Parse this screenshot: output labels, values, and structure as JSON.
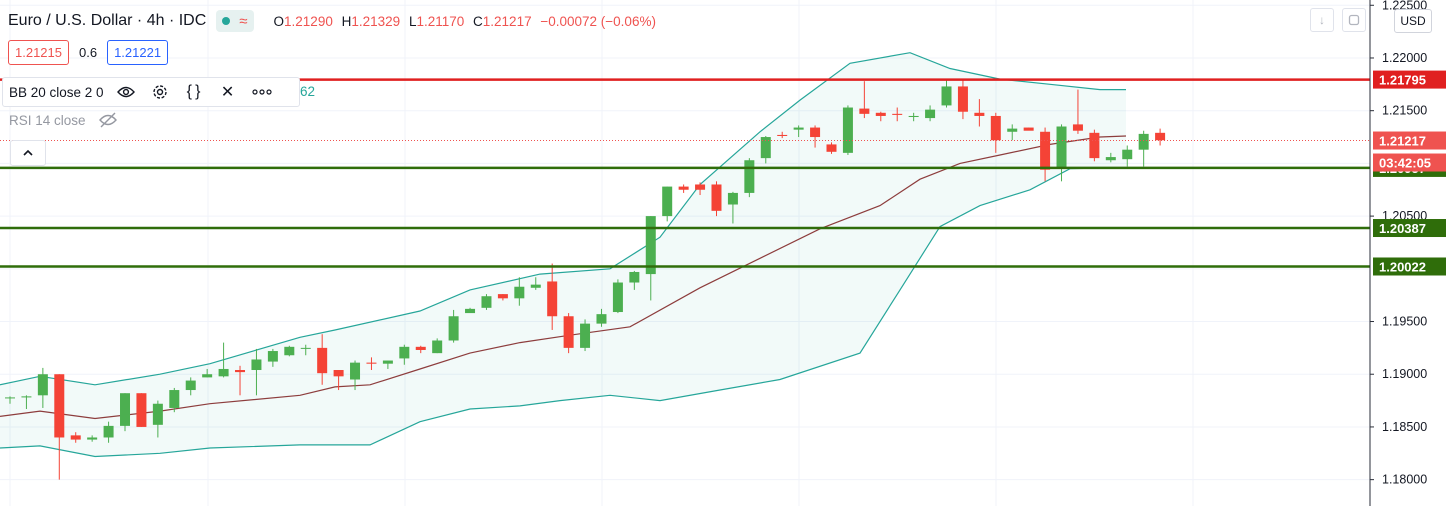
{
  "legend": {
    "symbol": "Euro / U.S. Dollar · 4h · IDC",
    "ohlc": [
      {
        "label": "O",
        "value": "1.21290"
      },
      {
        "label": "H",
        "value": "1.21329"
      },
      {
        "label": "L",
        "value": "1.21170"
      },
      {
        "label": "C",
        "value": "1.21217"
      }
    ],
    "change": "−0.00072 (−0.06%)",
    "bid": "1.21215",
    "spread": "0.6",
    "ask": "1.21221",
    "bb_label": "BB 20 close 2 0",
    "bb_value_tail": "62",
    "rsi_label": "RSI 14 close",
    "currency": "USD"
  },
  "icons": {
    "status": "market-open-dot",
    "wave": "approx-wave-icon",
    "bb_tools": [
      "eye-icon",
      "gear-icon",
      "braces-icon",
      "close-icon",
      "more-icon"
    ],
    "rsi": "eye-hidden-icon",
    "collapse": "chevron-up-icon",
    "top_right": [
      "arrow-down-icon",
      "restore-icon"
    ]
  },
  "chart_data": {
    "type": "candlestick",
    "y_ticks": [
      "1.22500",
      "1.22000",
      "1.21500",
      "1.20500",
      "1.19500",
      "1.19000",
      "1.18500",
      "1.18000"
    ],
    "ylim": [
      1.1775,
      1.2255
    ],
    "colors": {
      "up": "#4caf50",
      "down": "#f44336",
      "band": "#26a69a",
      "basis": "#8d3d3d"
    },
    "candles": [
      [
        1.1878,
        1.1879,
        1.1872,
        1.1878
      ],
      [
        1.1878,
        1.188,
        1.1867,
        1.1879
      ],
      [
        1.188,
        1.1906,
        1.1868,
        1.19
      ],
      [
        1.19,
        1.19,
        1.18,
        1.184
      ],
      [
        1.1842,
        1.1845,
        1.1835,
        1.1838
      ],
      [
        1.1838,
        1.1842,
        1.1836,
        1.184
      ],
      [
        1.184,
        1.1855,
        1.1835,
        1.1851
      ],
      [
        1.1851,
        1.1882,
        1.1846,
        1.1882
      ],
      [
        1.1882,
        1.1882,
        1.185,
        1.185
      ],
      [
        1.1852,
        1.1875,
        1.184,
        1.1872
      ],
      [
        1.1868,
        1.1887,
        1.1864,
        1.1885
      ],
      [
        1.1885,
        1.1897,
        1.188,
        1.1894
      ],
      [
        1.1897,
        1.1905,
        1.1897,
        1.19
      ],
      [
        1.1898,
        1.193,
        1.1897,
        1.1905
      ],
      [
        1.1904,
        1.1908,
        1.188,
        1.1902
      ],
      [
        1.1904,
        1.1924,
        1.188,
        1.1914
      ],
      [
        1.1912,
        1.1924,
        1.1907,
        1.1922
      ],
      [
        1.1918,
        1.1927,
        1.1917,
        1.1926
      ],
      [
        1.1925,
        1.1928,
        1.1918,
        1.1925
      ],
      [
        1.1925,
        1.1938,
        1.189,
        1.1901
      ],
      [
        1.1904,
        1.1904,
        1.1885,
        1.1898
      ],
      [
        1.1895,
        1.1913,
        1.1885,
        1.1911
      ],
      [
        1.1911,
        1.1916,
        1.1904,
        1.191
      ],
      [
        1.191,
        1.1913,
        1.1905,
        1.1913
      ],
      [
        1.1915,
        1.1928,
        1.1909,
        1.1926
      ],
      [
        1.1926,
        1.1927,
        1.192,
        1.1923
      ],
      [
        1.192,
        1.1934,
        1.192,
        1.1932
      ],
      [
        1.1932,
        1.1961,
        1.193,
        1.1955
      ],
      [
        1.1958,
        1.1963,
        1.196,
        1.1962
      ],
      [
        1.1963,
        1.1976,
        1.1961,
        1.1974
      ],
      [
        1.1976,
        1.1976,
        1.197,
        1.1972
      ],
      [
        1.1972,
        1.1992,
        1.1965,
        1.1983
      ],
      [
        1.1982,
        1.1992,
        1.198,
        1.1985
      ],
      [
        1.1988,
        1.2005,
        1.1942,
        1.1955
      ],
      [
        1.1955,
        1.1958,
        1.192,
        1.1925
      ],
      [
        1.1925,
        1.1952,
        1.1922,
        1.1948
      ],
      [
        1.1948,
        1.1962,
        1.1945,
        1.1957
      ],
      [
        1.1959,
        1.199,
        1.1958,
        1.1987
      ],
      [
        1.1987,
        1.1998,
        1.198,
        1.1997
      ],
      [
        1.1995,
        1.205,
        1.197,
        1.205
      ],
      [
        1.205,
        1.2078,
        1.2045,
        1.2078
      ],
      [
        1.2078,
        1.208,
        1.2072,
        1.2075
      ],
      [
        1.208,
        1.2082,
        1.207,
        1.2075
      ],
      [
        1.208,
        1.2083,
        1.205,
        1.2055
      ],
      [
        1.2061,
        1.2073,
        1.2043,
        1.2072
      ],
      [
        1.2072,
        1.2105,
        1.2068,
        1.2103
      ],
      [
        1.2105,
        1.2126,
        1.21,
        1.2125
      ],
      [
        1.2127,
        1.213,
        1.2124,
        1.2126
      ],
      [
        1.2132,
        1.2136,
        1.2125,
        1.2134
      ],
      [
        1.2134,
        1.2136,
        1.2115,
        1.2125
      ],
      [
        1.2118,
        1.212,
        1.2109,
        1.2111
      ],
      [
        1.211,
        1.2155,
        1.2108,
        1.2153
      ],
      [
        1.2152,
        1.2178,
        1.2143,
        1.2147
      ],
      [
        1.2148,
        1.2149,
        1.214,
        1.2145
      ],
      [
        1.2147,
        1.2153,
        1.214,
        1.2146
      ],
      [
        1.2144,
        1.2148,
        1.214,
        1.2145
      ],
      [
        1.2143,
        1.2155,
        1.214,
        1.2151
      ],
      [
        1.2155,
        1.218,
        1.2153,
        1.2173
      ],
      [
        1.2173,
        1.218,
        1.2142,
        1.2149
      ],
      [
        1.2148,
        1.2161,
        1.2135,
        1.2145
      ],
      [
        1.2145,
        1.2148,
        1.211,
        1.2122
      ],
      [
        1.213,
        1.2137,
        1.2122,
        1.2133
      ],
      [
        1.2134,
        1.2134,
        1.2132,
        1.2131
      ],
      [
        1.213,
        1.2134,
        1.2083,
        1.2094
      ],
      [
        1.2096,
        1.2137,
        1.2083,
        1.2135
      ],
      [
        1.2137,
        1.217,
        1.2128,
        1.2131
      ],
      [
        1.2129,
        1.2132,
        1.2102,
        1.2105
      ],
      [
        1.2103,
        1.211,
        1.2101,
        1.2106
      ],
      [
        1.2104,
        1.2117,
        1.2097,
        1.2113
      ],
      [
        1.2113,
        1.2131,
        1.2097,
        1.2128
      ],
      [
        1.2129,
        1.2133,
        1.2117,
        1.2122
      ]
    ],
    "basis": [
      [
        0,
        1.186
      ],
      [
        40,
        1.1865
      ],
      [
        95,
        1.1858
      ],
      [
        160,
        1.1865
      ],
      [
        210,
        1.1872
      ],
      [
        300,
        1.188
      ],
      [
        335,
        1.1888
      ],
      [
        370,
        1.189
      ],
      [
        420,
        1.1905
      ],
      [
        470,
        1.192
      ],
      [
        520,
        1.193
      ],
      [
        570,
        1.1937
      ],
      [
        630,
        1.1945
      ],
      [
        700,
        1.1982
      ],
      [
        760,
        1.201
      ],
      [
        820,
        1.2038
      ],
      [
        880,
        1.206
      ],
      [
        920,
        1.2085
      ],
      [
        960,
        1.21
      ],
      [
        1000,
        1.2108
      ],
      [
        1050,
        1.2118
      ],
      [
        1100,
        1.2125
      ],
      [
        1126,
        1.2126
      ]
    ],
    "upper_band": [
      [
        0,
        1.189
      ],
      [
        40,
        1.1898
      ],
      [
        95,
        1.189
      ],
      [
        160,
        1.19
      ],
      [
        210,
        1.191
      ],
      [
        300,
        1.1935
      ],
      [
        335,
        1.1942
      ],
      [
        420,
        1.196
      ],
      [
        470,
        1.198
      ],
      [
        540,
        1.1995
      ],
      [
        610,
        1.2
      ],
      [
        660,
        1.203
      ],
      [
        700,
        1.208
      ],
      [
        760,
        1.213
      ],
      [
        800,
        1.216
      ],
      [
        850,
        1.2195
      ],
      [
        910,
        1.2205
      ],
      [
        950,
        1.219
      ],
      [
        1000,
        1.218
      ],
      [
        1050,
        1.2175
      ],
      [
        1100,
        1.217
      ],
      [
        1126,
        1.217
      ]
    ],
    "lower_band": [
      [
        0,
        1.183
      ],
      [
        40,
        1.1832
      ],
      [
        95,
        1.1822
      ],
      [
        160,
        1.1825
      ],
      [
        210,
        1.183
      ],
      [
        300,
        1.1833
      ],
      [
        370,
        1.1833
      ],
      [
        420,
        1.1855
      ],
      [
        470,
        1.1867
      ],
      [
        520,
        1.187
      ],
      [
        560,
        1.1875
      ],
      [
        610,
        1.188
      ],
      [
        660,
        1.1875
      ],
      [
        720,
        1.1885
      ],
      [
        780,
        1.1895
      ],
      [
        860,
        1.192
      ],
      [
        900,
        1.198
      ],
      [
        940,
        1.204
      ],
      [
        980,
        1.206
      ],
      [
        1030,
        1.2075
      ],
      [
        1070,
        1.2095
      ],
      [
        1126,
        1.2096
      ]
    ],
    "horizontal_lines": [
      {
        "price": 1.21795,
        "label": "1.21795",
        "color": "#e02020"
      },
      {
        "price": 1.20957,
        "label": "1.20957",
        "color": "#2f6d0a"
      },
      {
        "price": 1.20387,
        "label": "1.20387",
        "color": "#2f6d0a"
      },
      {
        "price": 1.20022,
        "label": "1.20022",
        "color": "#2f6d0a"
      }
    ],
    "last_price": {
      "price": 1.21217,
      "label": "1.21217",
      "countdown": "03:42:05",
      "color": "#ef5350"
    },
    "grid": true
  }
}
